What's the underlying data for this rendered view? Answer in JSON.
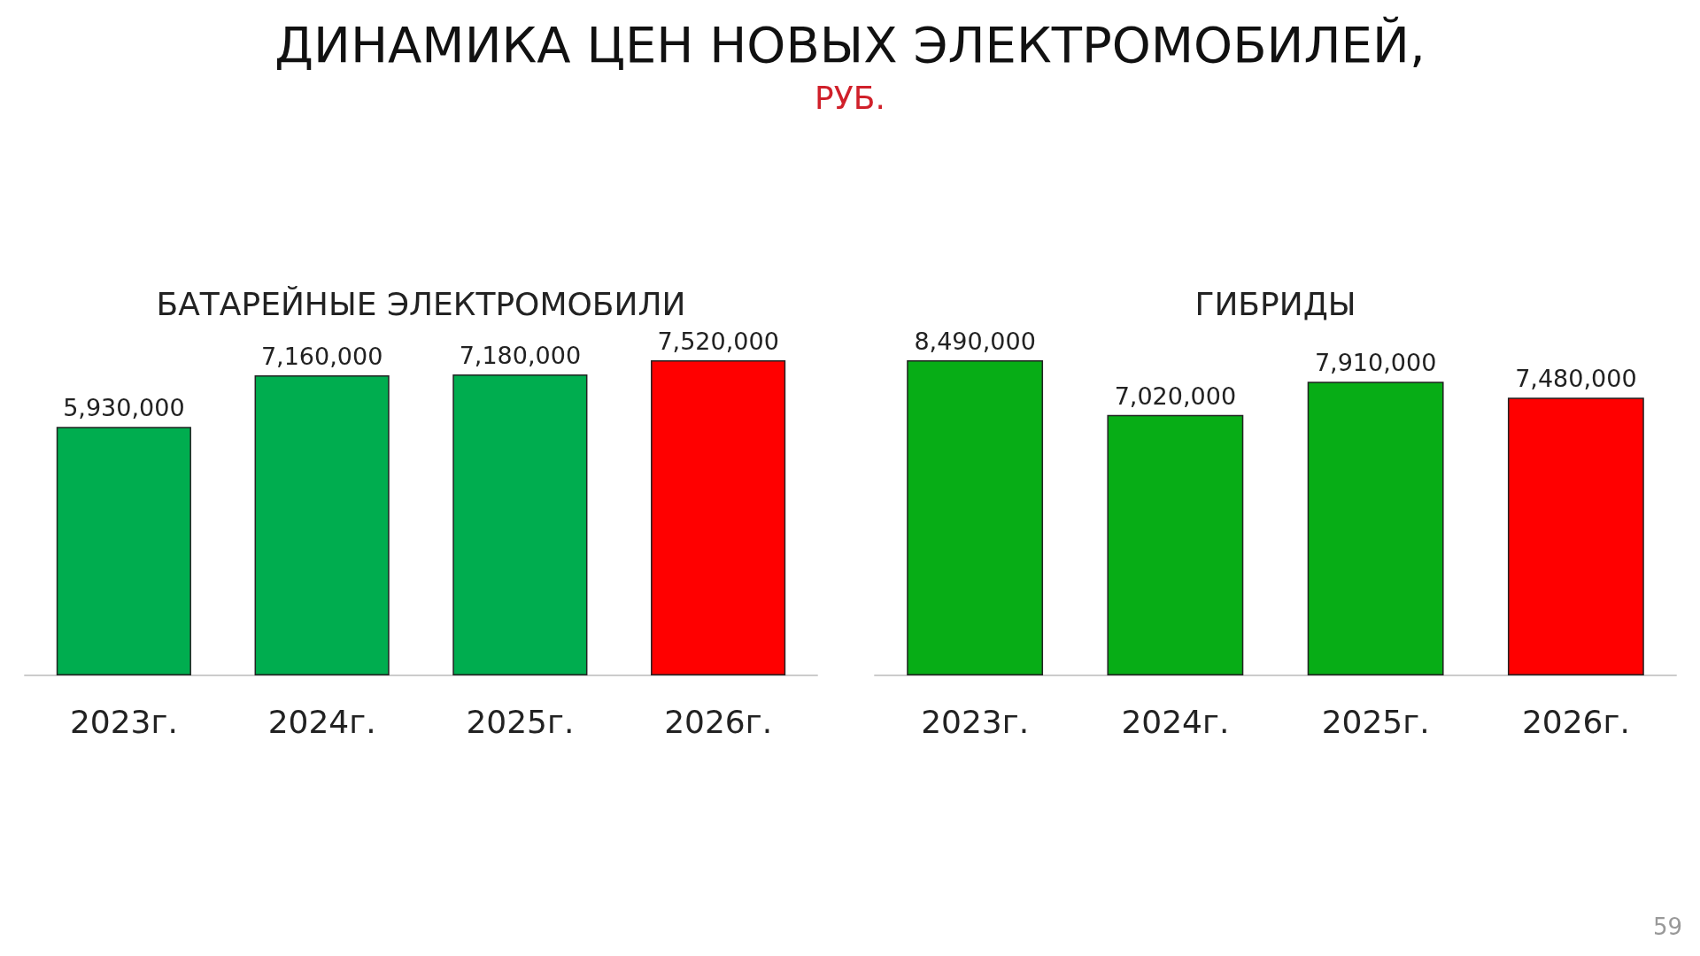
{
  "chart_data": [
    {
      "type": "other",
      "title": "ДИНАМИКА ЦЕН НОВЫХ ЭЛЕКТРОМОБИЛЕЙ,",
      "subtitle": "РУБ.",
      "annotations": [
        "59"
      ]
    },
    {
      "type": "bar",
      "title": "БАТАРЕЙНЫЕ ЭЛЕКТРОМОБИЛИ",
      "categories": [
        "2023г.",
        "2024г.",
        "2025г.",
        "2026г."
      ],
      "values": [
        5930000,
        7160000,
        7180000,
        7520000
      ],
      "value_labels": [
        "5,930,000",
        "7,160,000",
        "7,180,000",
        "7,520,000"
      ],
      "colors": [
        "#00ad4f",
        "#00ad4f",
        "#00ad4f",
        "#ff0000"
      ]
    },
    {
      "type": "bar",
      "title": "ГИБРИДЫ",
      "categories": [
        "2023г.",
        "2024г.",
        "2025г.",
        "2026г."
      ],
      "values": [
        8490000,
        7020000,
        7910000,
        7480000
      ],
      "value_labels": [
        "8,490,000",
        "7,020,000",
        "7,910,000",
        "7,480,000"
      ],
      "colors": [
        "#07ad16",
        "#07ad16",
        "#07ad16",
        "#ff0000"
      ]
    }
  ]
}
